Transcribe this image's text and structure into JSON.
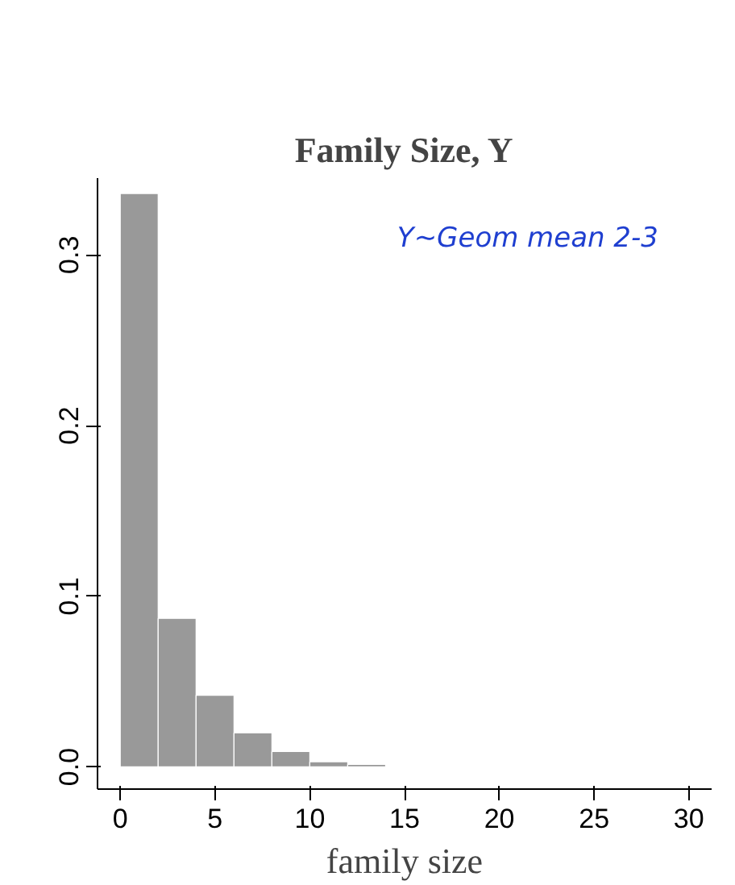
{
  "chart_data": {
    "type": "histogram",
    "title": "Family Size, Y",
    "xlabel": "family size",
    "bins": [
      0,
      2,
      4,
      6,
      8,
      10,
      12,
      14
    ],
    "values": [
      0.336,
      0.087,
      0.042,
      0.02,
      0.009,
      0.003,
      0.0015
    ],
    "color": "#999999",
    "xlim": [
      -1.2,
      31.2
    ],
    "ylim": [
      -0.013,
      0.345
    ],
    "xticks": [
      0,
      5,
      10,
      15,
      20,
      25,
      30
    ],
    "yticks": [
      {
        "value": 0,
        "label": "0.0"
      },
      {
        "value": 0.1,
        "label": "0.1"
      },
      {
        "value": 0.2,
        "label": "0.2"
      },
      {
        "value": 0.3,
        "label": "0.3"
      }
    ],
    "annotations": [
      "Y~Geom mean 2-3"
    ],
    "grid": false
  }
}
